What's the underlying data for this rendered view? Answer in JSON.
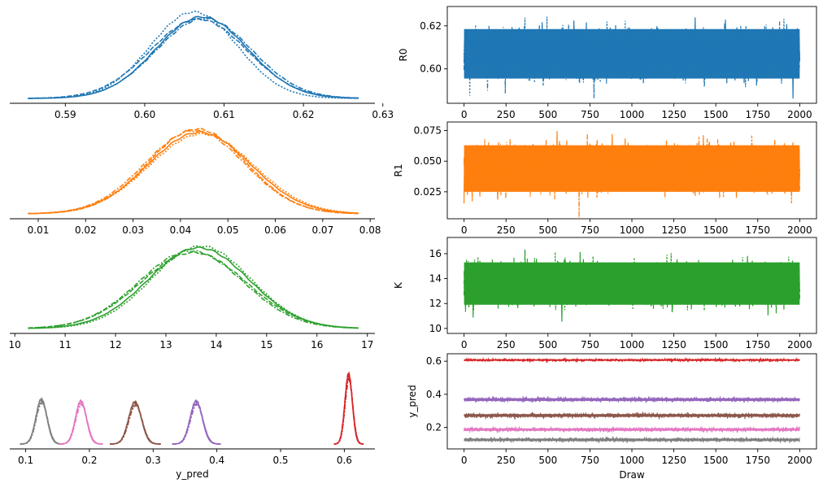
{
  "colors": {
    "blue": "#1f77b4",
    "orange": "#ff7f0e",
    "green": "#2ca02c",
    "red": "#d62728",
    "purple": "#9467bd",
    "brown": "#8c564b",
    "pink": "#e377c2",
    "gray": "#7f7f7f"
  },
  "chart_data": [
    {
      "type": "line",
      "role": "density",
      "variable": "R0",
      "color": "blue",
      "xlim": [
        0.583,
        0.629
      ],
      "xticks": [
        0.59,
        0.6,
        0.61,
        0.62,
        0.63
      ],
      "tick_labels": [
        "0.59",
        "0.60",
        "0.61",
        "0.62",
        "0.63"
      ],
      "xlabel": "",
      "chains": [
        {
          "mean": 0.6072,
          "sd": 0.0058,
          "peak": 1.0
        },
        {
          "mean": 0.6068,
          "sd": 0.0061,
          "peak": 0.97
        },
        {
          "mean": 0.6062,
          "sd": 0.0055,
          "peak": 1.06
        },
        {
          "mean": 0.6075,
          "sd": 0.006,
          "peak": 0.98
        }
      ]
    },
    {
      "type": "line",
      "role": "density",
      "variable": "R1",
      "color": "orange",
      "xlim": [
        0.004,
        0.081
      ],
      "xticks": [
        0.01,
        0.02,
        0.03,
        0.04,
        0.05,
        0.06,
        0.07,
        0.08
      ],
      "tick_labels": [
        "0.01",
        "0.02",
        "0.03",
        "0.04",
        "0.05",
        "0.06",
        "0.07",
        "0.08"
      ],
      "xlabel": "",
      "chains": [
        {
          "mean": 0.044,
          "sd": 0.0108,
          "peak": 1.0
        },
        {
          "mean": 0.0435,
          "sd": 0.0103,
          "peak": 1.04
        },
        {
          "mean": 0.0445,
          "sd": 0.011,
          "peak": 0.98
        },
        {
          "mean": 0.043,
          "sd": 0.0105,
          "peak": 1.02
        }
      ]
    },
    {
      "type": "line",
      "role": "density",
      "variable": "K",
      "color": "green",
      "xlim": [
        9.9,
        17.15
      ],
      "xticks": [
        10,
        11,
        12,
        13,
        14,
        15,
        16,
        17
      ],
      "tick_labels": [
        "10",
        "11",
        "12",
        "13",
        "14",
        "15",
        "16",
        "17"
      ],
      "xlabel": "",
      "chains": [
        {
          "mean": 13.65,
          "sd": 1.0,
          "peak": 1.0
        },
        {
          "mean": 13.55,
          "sd": 1.05,
          "peak": 0.94
        },
        {
          "mean": 13.7,
          "sd": 0.98,
          "peak": 1.02
        },
        {
          "mean": 13.5,
          "sd": 1.03,
          "peak": 0.96
        }
      ]
    },
    {
      "type": "line",
      "role": "density",
      "variable": "y_pred",
      "xlim": [
        0.075,
        0.648
      ],
      "xticks": [
        0.1,
        0.2,
        0.3,
        0.4,
        0.5,
        0.6
      ],
      "tick_labels": [
        "0.1",
        "0.2",
        "0.3",
        "0.4",
        "0.5",
        "0.6"
      ],
      "xlabel": "y_pred",
      "components": [
        {
          "color": "gray",
          "mean": 0.125,
          "sd": 0.0085,
          "peak": 0.5
        },
        {
          "color": "pink",
          "mean": 0.187,
          "sd": 0.0085,
          "peak": 0.48
        },
        {
          "color": "brown",
          "mean": 0.272,
          "sd": 0.01,
          "peak": 0.47
        },
        {
          "color": "purple",
          "mean": 0.368,
          "sd": 0.0095,
          "peak": 0.48
        },
        {
          "color": "red",
          "mean": 0.607,
          "sd": 0.0058,
          "peak": 0.78
        }
      ]
    },
    {
      "type": "line",
      "role": "trace",
      "variable": "R0",
      "color": "blue",
      "ylabel": "R0",
      "xlabel": "",
      "xlim": [
        -100,
        2100
      ],
      "ylim": [
        0.584,
        0.629
      ],
      "xticks": [
        0,
        250,
        500,
        750,
        1000,
        1250,
        1500,
        1750,
        2000
      ],
      "yticks": [
        0.6,
        0.62
      ],
      "ytick_labels": [
        "0.60",
        "0.62"
      ],
      "mean": 0.607,
      "spread": 0.0115
    },
    {
      "type": "line",
      "role": "trace",
      "variable": "R1",
      "color": "orange",
      "ylabel": "R1",
      "xlabel": "",
      "xlim": [
        -100,
        2100
      ],
      "ylim": [
        0.003,
        0.082
      ],
      "xticks": [
        0,
        250,
        500,
        750,
        1000,
        1250,
        1500,
        1750,
        2000
      ],
      "yticks": [
        0.025,
        0.05,
        0.075
      ],
      "ytick_labels": [
        "0.025",
        "0.050",
        "0.075"
      ],
      "mean": 0.044,
      "spread": 0.019
    },
    {
      "type": "line",
      "role": "trace",
      "variable": "K",
      "color": "green",
      "ylabel": "K",
      "xlabel": "",
      "xlim": [
        -100,
        2100
      ],
      "ylim": [
        9.6,
        17.3
      ],
      "xticks": [
        0,
        250,
        500,
        750,
        1000,
        1250,
        1500,
        1750,
        2000
      ],
      "yticks": [
        10,
        12,
        14,
        16
      ],
      "ytick_labels": [
        "10",
        "12",
        "14",
        "16"
      ],
      "mean": 13.6,
      "spread": 1.7
    },
    {
      "type": "line",
      "role": "trace",
      "variable": "y_pred",
      "ylabel": "y_pred",
      "xlabel": "Draw",
      "xlim": [
        -100,
        2100
      ],
      "ylim": [
        0.07,
        0.645
      ],
      "xticks": [
        0,
        250,
        500,
        750,
        1000,
        1250,
        1500,
        1750,
        2000
      ],
      "yticks": [
        0.2,
        0.4,
        0.6
      ],
      "ytick_labels": [
        "0.2",
        "0.4",
        "0.6"
      ],
      "components": [
        {
          "color": "red",
          "mean": 0.607,
          "spread": 0.009
        },
        {
          "color": "purple",
          "mean": 0.368,
          "spread": 0.016
        },
        {
          "color": "brown",
          "mean": 0.272,
          "spread": 0.016
        },
        {
          "color": "pink",
          "mean": 0.187,
          "spread": 0.014
        },
        {
          "color": "gray",
          "mean": 0.125,
          "spread": 0.014
        }
      ]
    }
  ],
  "xtick_labels_trace": [
    "0",
    "250",
    "500",
    "750",
    "1000",
    "1250",
    "1500",
    "1750",
    "2000"
  ]
}
